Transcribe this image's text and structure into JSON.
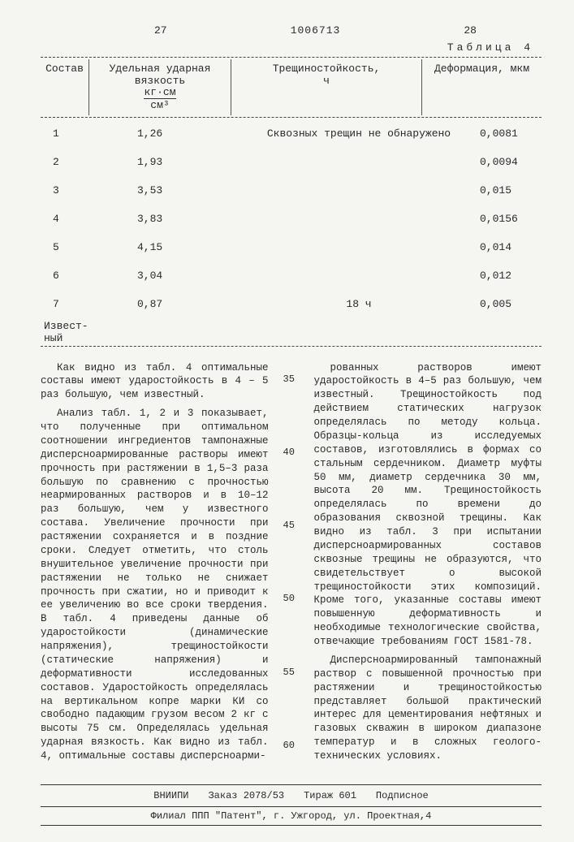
{
  "header": {
    "left_page": "27",
    "doc_number": "1006713",
    "right_page": "28",
    "table_label": "Таблица 4"
  },
  "table": {
    "columns": {
      "c0": "Состав",
      "c1_top": "Удельная ударная вязкость",
      "c1_unit_num": "кг·см",
      "c1_unit_den": "см³",
      "c2_top": "Трещиностойкость,",
      "c2_unit": "ч",
      "c3": "Деформация, мкм"
    },
    "cracks_note": "Сквозных трещин не обнаружено",
    "rows": [
      {
        "n": "1",
        "v": "1,26",
        "c": "",
        "d": "0,0081"
      },
      {
        "n": "2",
        "v": "1,93",
        "c": "",
        "d": "0,0094"
      },
      {
        "n": "3",
        "v": "3,53",
        "c": "",
        "d": "0,015"
      },
      {
        "n": "4",
        "v": "3,83",
        "c": "",
        "d": "0,0156"
      },
      {
        "n": "5",
        "v": "4,15",
        "c": "",
        "d": "0,014"
      },
      {
        "n": "6",
        "v": "3,04",
        "c": "",
        "d": "0,012"
      },
      {
        "n": "7",
        "v": "0,87",
        "c": "18 ч",
        "d": "0,005"
      }
    ],
    "known_label": "Извест-\nный"
  },
  "linenums": [
    "35",
    "40",
    "45",
    "50",
    "55",
    "60"
  ],
  "left_col": {
    "p1": "Как видно из табл. 4 оптимальные составы имеют ударостойкость в 4 – 5 раз большую, чем известный.",
    "p2": "Анализ табл. 1, 2 и 3 показывает, что полученные при оптимальном соотношении ингредиентов тампонажные дисперсноармированные растворы имеют прочность при растяжении в 1,5–3 раза большую по сравнению с прочностью неармированных растворов и в 10–12 раз большую, чем у известного состава. Увеличение прочности при растяжении сохраняется и в поздние сроки. Следует отметить, что столь внушительное увеличение прочности при растяжении не только не снижает прочность при сжатии, но и приводит к ее увеличению во все сроки твердения. В табл. 4 приведены данные об ударостойкости (динамические напряжения), трещиностойкости (статические напряжения) и деформативности исследованных составов. Ударостойкость определялась на вертикальном копре марки КИ со свободно падающим грузом весом 2 кг с высоты 75 см. Определялась удельная ударная вязкость. Как видно из табл. 4, оптимальные составы дисперсноарми-"
  },
  "right_col": {
    "p1": "рованных растворов имеют ударостойкость в 4–5 раз большую, чем известный. Трещиностойкость под действием статических нагрузок определялась по методу кольца. Образцы-кольца из исследуемых составов, изготовлялись в формах со стальным сердечником. Диаметр муфты 50 мм, диаметр сердечника 30 мм, высота 20 мм. Трещиностойкость определялась по времени до образования сквозной трещины. Как видно из табл. 3 при испытании дисперсноармированных составов сквозные трещины не образуются, что свидетельствует о высокой трещиностойкости этих композиций. Кроме того, указанные составы имеют повышенную деформативность и необходимые технологические свойства, отвечающие требованиям ГОСТ 1581-78.",
    "p2": "Дисперсноармированный тампонажный раствор с повышенной прочностью при растяжении и трещиностойкостью представляет большой практический интерес для цементирования нефтяных и газовых скважин в широком диапазоне температур и в сложных геолого-технических условиях."
  },
  "footer": {
    "org": "ВНИИПИ",
    "order": "Заказ 2078/53",
    "tirazh": "Тираж 601",
    "sub": "Подписное",
    "addr": "Филиал ППП \"Патент\", г. Ужгород, ул. Проектная,4"
  }
}
